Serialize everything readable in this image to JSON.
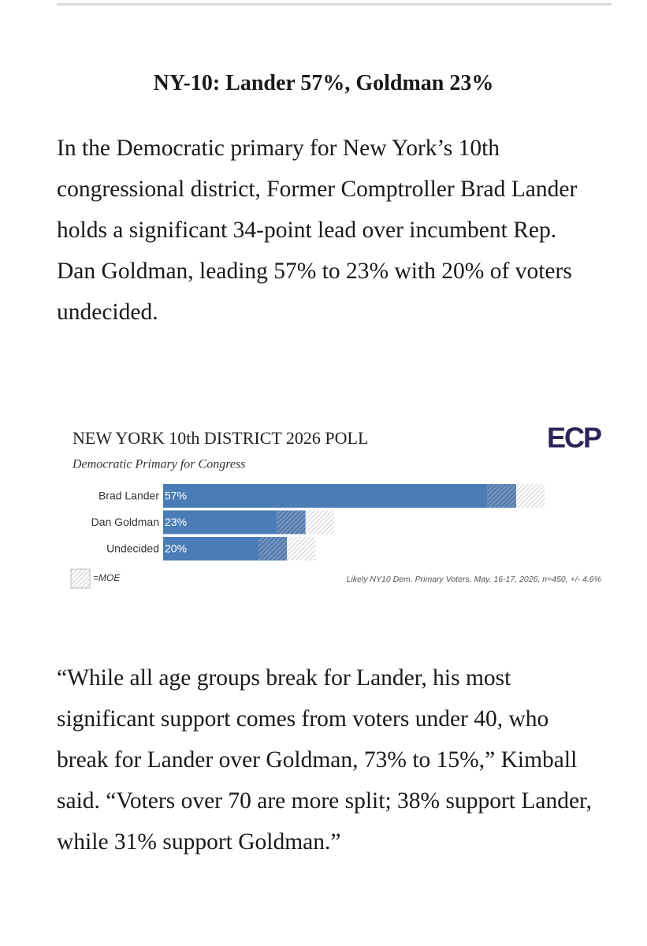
{
  "article": {
    "heading": "NY-10: Lander 57%, Goldman 23%",
    "paragraphs": [
      "In the Democratic primary for New York’s 10th congressional district, Former Comptroller Brad Lander holds a significant 34-point lead over incumbent Rep. Dan Goldman, leading 57% to 23% with 20% of voters undecided.",
      "“While all age groups break for Lander, his most significant support comes from voters under 40, who break for Lander over Goldman, 73% to 15%,” Kimball said. “Voters over 70 are more split; 38% support Lander, while 31% support Goldman.”"
    ]
  },
  "chart_data": {
    "type": "bar",
    "orientation": "horizontal",
    "title": "NEW YORK 10th DISTRICT 2026 POLL",
    "subtitle": "Democratic Primary for Congress",
    "logo": "ECP",
    "categories": [
      "Brad Lander",
      "Dan Goldman",
      "Undecided"
    ],
    "values": [
      57,
      23,
      20
    ],
    "value_labels": [
      "57%",
      "23%",
      "20%"
    ],
    "moe": 4.6,
    "color": "#4a7db6",
    "legend_label": "=MOE",
    "note": "Likely NY10 Dem. Primary Voters, May. 16-17, 2026, n=450, +/- 4.6%"
  }
}
